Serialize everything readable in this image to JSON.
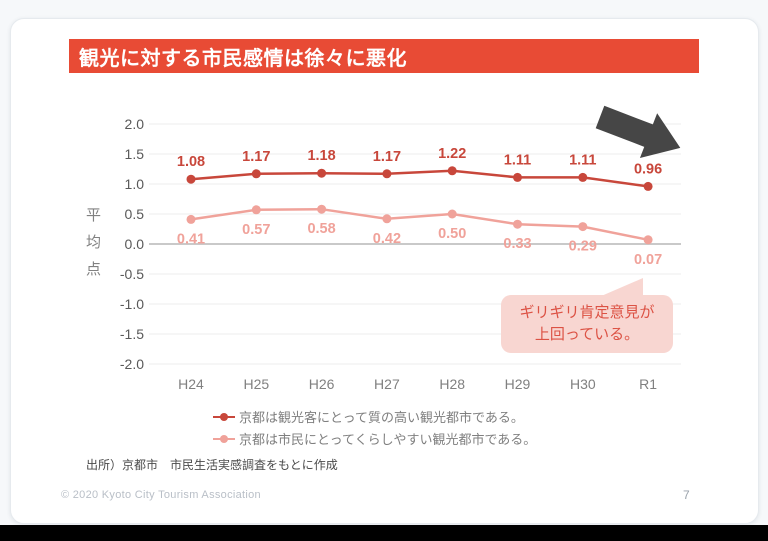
{
  "slide": {
    "title": "観光に対する市民感情は徐々に悪化",
    "source": "出所）京都市　市民生活実感調査をもとに作成",
    "footer": {
      "copyright": "© 2020 Kyoto City Tourism Association",
      "page_number": "7"
    },
    "annotation": {
      "line1": "ギリギリ肯定意見が",
      "line2": "上回っている。"
    }
  },
  "colors": {
    "banner": "#e84b35",
    "series1": "#c8473b",
    "series2": "#f0a29a",
    "annotation_bg": "#f8d6d1",
    "annotation_text": "#dc5244",
    "grid": "#ececec",
    "zero_line": "#c9c9c9",
    "arrow": "#464646"
  },
  "chart_data": {
    "type": "line",
    "categories": [
      "H24",
      "H25",
      "H26",
      "H27",
      "H28",
      "H29",
      "H30",
      "R1"
    ],
    "series": [
      {
        "name": "京都は観光客にとって質の高い観光都市である。",
        "values": [
          1.08,
          1.17,
          1.18,
          1.17,
          1.22,
          1.11,
          1.11,
          0.96
        ],
        "color": "#c8473b"
      },
      {
        "name": "京都は市民にとってくらしやすい観光都市である。",
        "values": [
          0.41,
          0.57,
          0.58,
          0.42,
          0.5,
          0.33,
          0.29,
          0.07
        ],
        "color": "#f0a29a"
      }
    ],
    "title": "観光に対する市民感情は徐々に悪化",
    "xlabel": "",
    "ylabel": "平均点",
    "ylim": [
      -2.0,
      2.0
    ],
    "ytick_step": 0.5,
    "grid": true,
    "legend_position": "bottom"
  }
}
